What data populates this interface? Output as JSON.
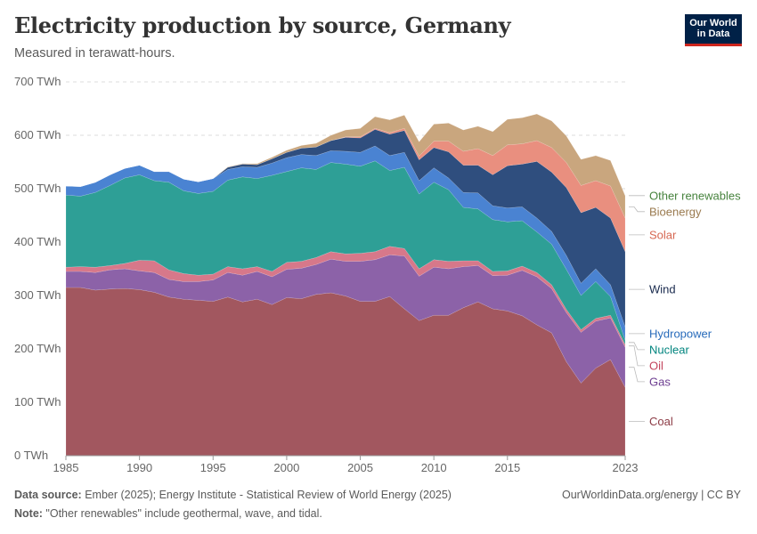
{
  "title": "Electricity production by source, Germany",
  "subtitle": "Measured in terawatt-hours.",
  "logo": {
    "line1": "Our World",
    "line2": "in Data"
  },
  "footer": {
    "source_label": "Data source:",
    "source_text": " Ember (2025); Energy Institute - Statistical Review of World Energy (2025)",
    "note_label": "Note:",
    "note_text": " \"Other renewables\" include geothermal, wave, and tidal.",
    "credit": "OurWorldinData.org/energy | CC BY"
  },
  "chart_data": {
    "type": "area",
    "stacked": true,
    "y_unit": "TWh",
    "ylim": [
      0,
      700
    ],
    "y_ticks": [
      0,
      100,
      200,
      300,
      400,
      500,
      600,
      700
    ],
    "y_tick_labels": [
      "0 TWh",
      "100 TWh",
      "200 TWh",
      "300 TWh",
      "400 TWh",
      "500 TWh",
      "600 TWh",
      "700 TWh"
    ],
    "x_ticks": [
      1985,
      1990,
      1995,
      2000,
      2005,
      2010,
      2015,
      2023
    ],
    "x_tick_labels": [
      "1985",
      "1990",
      "1995",
      "2000",
      "2005",
      "2010",
      "2015",
      "2023"
    ],
    "grid": "horizontal-dashed",
    "legend_placement": "right",
    "x": [
      1985,
      1986,
      1987,
      1988,
      1989,
      1990,
      1991,
      1992,
      1993,
      1994,
      1995,
      1996,
      1997,
      1998,
      1999,
      2000,
      2001,
      2002,
      2003,
      2004,
      2005,
      2006,
      2007,
      2008,
      2009,
      2010,
      2011,
      2012,
      2013,
      2014,
      2015,
      2016,
      2017,
      2018,
      2019,
      2020,
      2021,
      2022,
      2023
    ],
    "series": [
      {
        "name": "Coal",
        "color": "#a2575f",
        "label_color": "#8c3b45",
        "values": [
          315,
          315,
          310,
          312,
          313,
          311,
          306,
          297,
          293,
          291,
          289,
          297,
          288,
          293,
          283,
          296,
          294,
          302,
          305,
          299,
          289,
          289,
          298,
          275,
          253,
          263,
          263,
          277,
          288,
          275,
          271,
          262,
          245,
          230,
          176,
          136,
          164,
          180,
          128
        ]
      },
      {
        "name": "Gas",
        "color": "#8c62a8",
        "label_color": "#6d3e91",
        "values": [
          30,
          30,
          33,
          36,
          37,
          35,
          37,
          33,
          33,
          35,
          40,
          46,
          50,
          52,
          52,
          53,
          57,
          56,
          63,
          65,
          75,
          78,
          78,
          99,
          83,
          90,
          87,
          77,
          68,
          62,
          67,
          85,
          90,
          83,
          92,
          95,
          88,
          78,
          75
        ]
      },
      {
        "name": "Oil",
        "color": "#d7788a",
        "label_color": "#c3455d",
        "values": [
          8,
          9,
          10,
          8,
          10,
          20,
          22,
          18,
          15,
          12,
          11,
          11,
          12,
          9,
          10,
          13,
          13,
          13,
          14,
          14,
          15,
          15,
          16,
          14,
          14,
          14,
          14,
          11,
          9,
          8,
          8,
          8,
          8,
          7,
          6,
          5,
          5,
          5,
          5
        ]
      },
      {
        "name": "Nuclear",
        "color": "#2e9f96",
        "label_color": "#00847e",
        "values": [
          135,
          132,
          140,
          150,
          160,
          160,
          150,
          164,
          155,
          153,
          155,
          162,
          172,
          165,
          180,
          170,
          175,
          165,
          167,
          168,
          163,
          170,
          142,
          152,
          140,
          145,
          134,
          100,
          97,
          97,
          92,
          85,
          76,
          76,
          75,
          64,
          69,
          35,
          8
        ]
      },
      {
        "name": "Hydropower",
        "color": "#4a83d2",
        "label_color": "#286bbb",
        "values": [
          17,
          18,
          19,
          20,
          18,
          18,
          17,
          20,
          22,
          22,
          24,
          20,
          19,
          21,
          23,
          26,
          25,
          26,
          22,
          24,
          26,
          28,
          28,
          28,
          25,
          27,
          22,
          28,
          30,
          26,
          26,
          26,
          26,
          24,
          26,
          23,
          24,
          22,
          25
        ]
      },
      {
        "name": "Wind",
        "color": "#2f4e7e",
        "label_color": "#18294d",
        "values": [
          0,
          0,
          0,
          0,
          0,
          0,
          0,
          0,
          0,
          0,
          0,
          4,
          5,
          5,
          8,
          10,
          12,
          16,
          19,
          26,
          27,
          31,
          40,
          41,
          39,
          38,
          49,
          51,
          52,
          58,
          79,
          80,
          106,
          111,
          127,
          132,
          115,
          125,
          141
        ]
      },
      {
        "name": "Solar",
        "color": "#e98f7f",
        "label_color": "#d66751",
        "values": [
          0,
          0,
          0,
          0,
          0,
          0,
          0,
          0,
          0,
          0,
          0,
          0,
          0,
          0,
          0,
          0,
          0,
          0,
          0,
          1,
          2,
          2,
          3,
          4,
          7,
          12,
          20,
          26,
          31,
          36,
          39,
          38,
          39,
          46,
          47,
          51,
          50,
          60,
          63
        ]
      },
      {
        "name": "Bioenergy",
        "color": "#c9a67e",
        "label_color": "#9a7a4f",
        "values": [
          0,
          0,
          0,
          0,
          0,
          0,
          0,
          0,
          0,
          0,
          0,
          1,
          1,
          2,
          3,
          4,
          5,
          7,
          10,
          13,
          16,
          22,
          24,
          25,
          27,
          32,
          34,
          40,
          42,
          45,
          48,
          49,
          50,
          50,
          50,
          49,
          47,
          48,
          42
        ]
      },
      {
        "name": "Other renewables",
        "color": "#9fc99a",
        "label_color": "#47833e",
        "values": [
          0,
          0,
          0,
          0,
          0,
          0,
          0,
          0,
          0,
          0,
          0,
          0,
          0,
          0,
          0,
          0,
          0,
          0,
          0,
          0,
          0,
          0,
          0,
          0,
          0,
          0,
          0,
          0,
          0,
          0,
          0,
          0,
          0,
          0,
          0,
          0,
          0,
          0,
          0
        ]
      }
    ]
  }
}
